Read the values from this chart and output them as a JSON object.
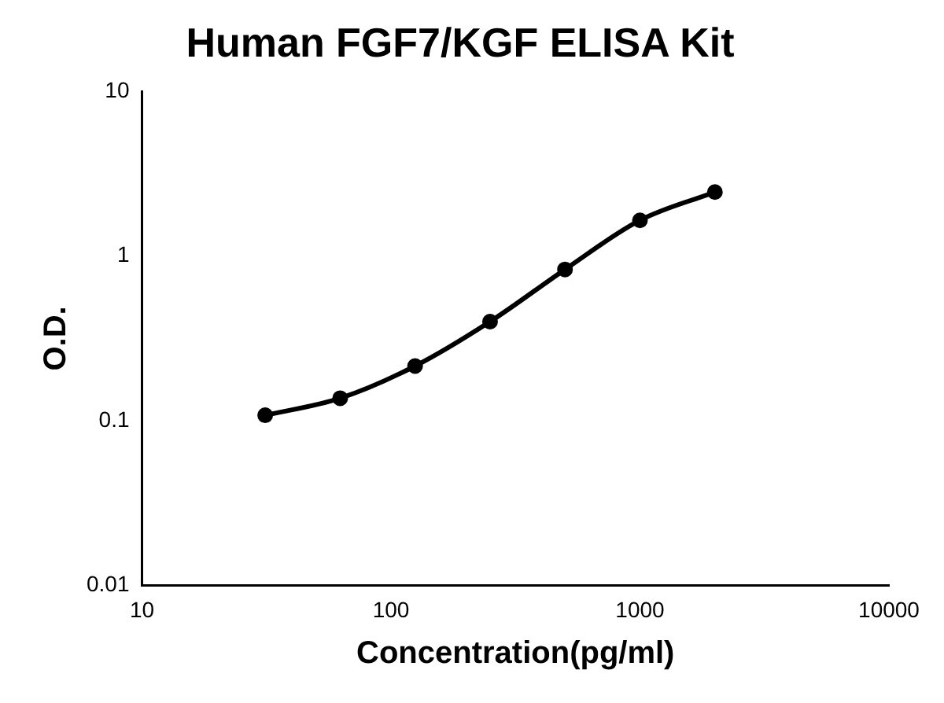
{
  "chart_data": {
    "type": "line",
    "title": "Human FGF7/KGF ELISA Kit",
    "xlabel": "Concentration(pg/ml)",
    "ylabel": "O.D.",
    "x": [
      31.25,
      62.5,
      125,
      250,
      500,
      1000,
      2000
    ],
    "series": [
      {
        "color": "#000000",
        "values": [
          0.108,
          0.137,
          0.215,
          0.4,
          0.83,
          1.65,
          2.45
        ]
      }
    ],
    "log": "xy",
    "xlim": [
      10,
      10000
    ],
    "xticks": [
      10,
      100,
      1000,
      10000
    ],
    "ylim": [
      0.01,
      10
    ],
    "yticks": [
      0.01,
      0.1,
      1,
      10
    ],
    "grid": false,
    "legend": false,
    "marker": "circle",
    "line_style": "solid"
  }
}
